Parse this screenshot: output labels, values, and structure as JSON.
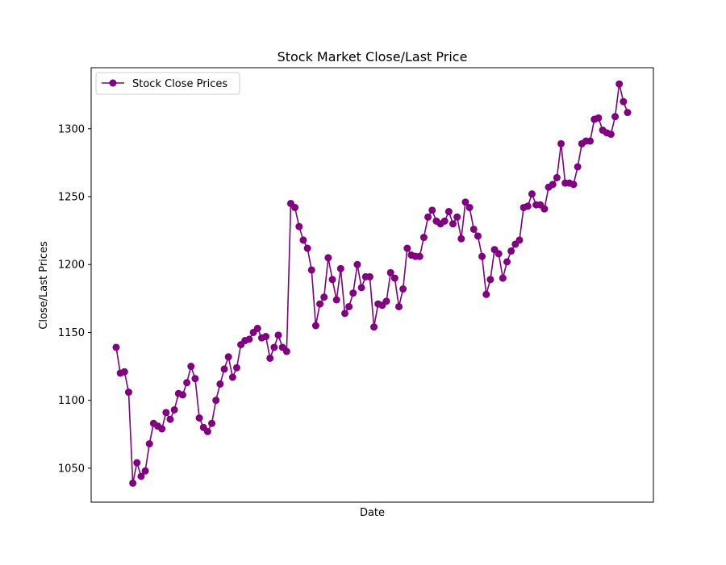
{
  "chart_data": {
    "type": "line",
    "title": "Stock Market Close/Last Price",
    "xlabel": "Date",
    "ylabel": "Close/Last Prices",
    "ylim": [
      1025,
      1345
    ],
    "yticks": [
      1050,
      1100,
      1150,
      1200,
      1250,
      1300
    ],
    "xticks_visible": false,
    "grid": false,
    "legend": {
      "placement": "top-left"
    },
    "series": [
      {
        "name": "Stock Close Prices",
        "color": "#800080",
        "marker": "circle",
        "values": [
          1139,
          1120,
          1121,
          1106,
          1039,
          1054,
          1044,
          1048,
          1068,
          1083,
          1081,
          1079,
          1091,
          1086,
          1093,
          1105,
          1104,
          1113,
          1125,
          1116,
          1087,
          1080,
          1077,
          1083,
          1100,
          1112,
          1123,
          1132,
          1117,
          1124,
          1141,
          1144,
          1145,
          1150,
          1153,
          1146,
          1147,
          1131,
          1139,
          1148,
          1139,
          1136,
          1245,
          1242,
          1228,
          1218,
          1212,
          1196,
          1155,
          1171,
          1176,
          1205,
          1189,
          1174,
          1197,
          1164,
          1169,
          1179,
          1200,
          1183,
          1191,
          1191,
          1154,
          1171,
          1170,
          1173,
          1194,
          1190,
          1169,
          1182,
          1212,
          1207,
          1206,
          1206,
          1220,
          1235,
          1240,
          1232,
          1230,
          1232,
          1239,
          1230,
          1235,
          1219,
          1246,
          1242,
          1226,
          1221,
          1206,
          1178,
          1189,
          1211,
          1208,
          1190,
          1202,
          1210,
          1215,
          1218,
          1242,
          1243,
          1252,
          1244,
          1244,
          1241,
          1257,
          1259,
          1264,
          1289,
          1260,
          1260,
          1259,
          1272,
          1289,
          1291,
          1291,
          1307,
          1308,
          1299,
          1297,
          1296,
          1309,
          1333,
          1320,
          1312
        ]
      }
    ]
  }
}
